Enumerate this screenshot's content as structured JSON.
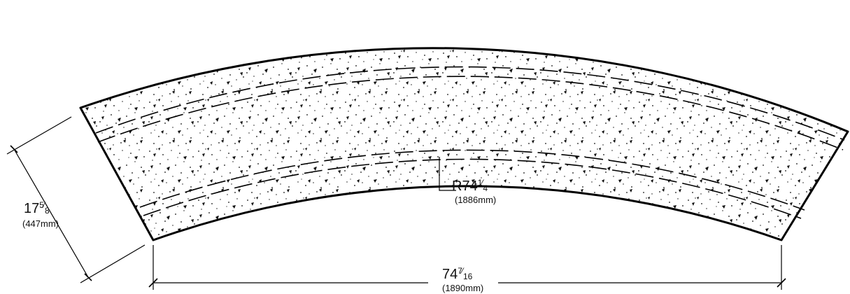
{
  "drawing": {
    "width_label": {
      "whole": "74",
      "num": "7",
      "den": "16",
      "metric": "(1890mm)"
    },
    "depth_label": {
      "whole": "17",
      "num": "5",
      "den": "8",
      "metric": "(447mm)"
    },
    "radius_label": {
      "prefix": "R",
      "whole": "74",
      "num": "1",
      "den": "4",
      "metric": "(1886mm)"
    }
  }
}
